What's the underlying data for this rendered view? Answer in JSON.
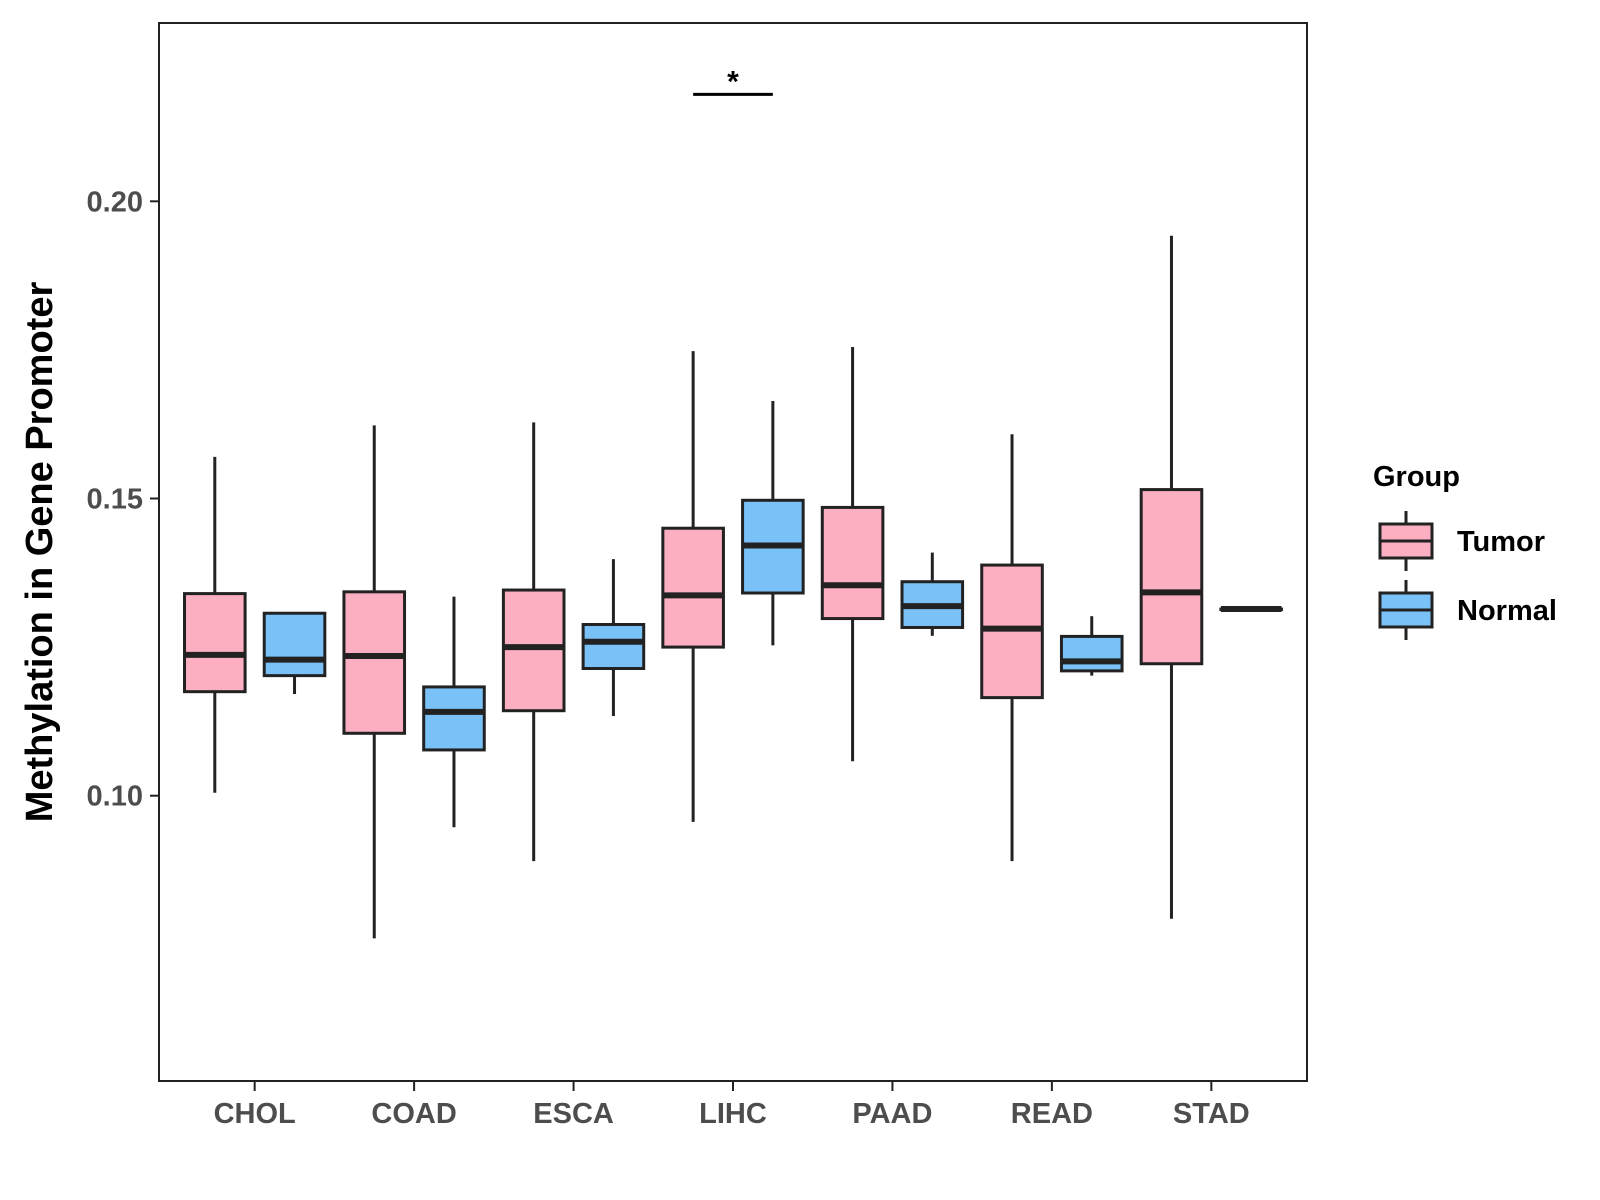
{
  "chart_data": {
    "type": "boxplot",
    "title": "",
    "xlabel": "",
    "ylabel": "Methylation in Gene Promoter",
    "ylim": [
      0.052,
      0.23
    ],
    "yticks": [
      0.1,
      0.15,
      0.2
    ],
    "ytick_labels": [
      "0.10",
      "0.15",
      "0.20"
    ],
    "categories": [
      "CHOL",
      "COAD",
      "ESCA",
      "LIHC",
      "PAAD",
      "READ",
      "STAD"
    ],
    "legend": {
      "title": "Group",
      "position": "right",
      "items": [
        {
          "name": "Tumor",
          "color": "#FBAFC1"
        },
        {
          "name": "Normal",
          "color": "#79C1F7"
        }
      ]
    },
    "series": [
      {
        "name": "Tumor",
        "color": "#FBAFC1",
        "boxes": [
          {
            "category": "CHOL",
            "min": 0.1005,
            "q1": 0.1175,
            "median": 0.1237,
            "q3": 0.134,
            "max": 0.157
          },
          {
            "category": "COAD",
            "min": 0.076,
            "q1": 0.1105,
            "median": 0.1235,
            "q3": 0.1343,
            "max": 0.1623
          },
          {
            "category": "ESCA",
            "min": 0.089,
            "q1": 0.1143,
            "median": 0.125,
            "q3": 0.1346,
            "max": 0.1628
          },
          {
            "category": "LIHC",
            "min": 0.0956,
            "q1": 0.125,
            "median": 0.1337,
            "q3": 0.145,
            "max": 0.1748
          },
          {
            "category": "PAAD",
            "min": 0.1058,
            "q1": 0.1298,
            "median": 0.1354,
            "q3": 0.1485,
            "max": 0.1755
          },
          {
            "category": "READ",
            "min": 0.089,
            "q1": 0.1165,
            "median": 0.1281,
            "q3": 0.1388,
            "max": 0.1608
          },
          {
            "category": "STAD",
            "min": 0.0793,
            "q1": 0.1222,
            "median": 0.1342,
            "q3": 0.1515,
            "max": 0.1942
          }
        ]
      },
      {
        "name": "Normal",
        "color": "#79C1F7",
        "boxes": [
          {
            "category": "CHOL",
            "min": 0.1171,
            "q1": 0.1202,
            "median": 0.1229,
            "q3": 0.1307,
            "max": 0.1307
          },
          {
            "category": "COAD",
            "min": 0.0947,
            "q1": 0.1077,
            "median": 0.1141,
            "q3": 0.1183,
            "max": 0.1335
          },
          {
            "category": "ESCA",
            "min": 0.1134,
            "q1": 0.1214,
            "median": 0.1259,
            "q3": 0.1288,
            "max": 0.1398
          },
          {
            "category": "LIHC",
            "min": 0.1253,
            "q1": 0.1341,
            "median": 0.1421,
            "q3": 0.1497,
            "max": 0.1664
          },
          {
            "category": "PAAD",
            "min": 0.1269,
            "q1": 0.1283,
            "median": 0.1319,
            "q3": 0.136,
            "max": 0.1409
          },
          {
            "category": "READ",
            "min": 0.1202,
            "q1": 0.121,
            "median": 0.1226,
            "q3": 0.1268,
            "max": 0.1302
          },
          {
            "category": "STAD",
            "min": 0.1314,
            "q1": 0.1314,
            "median": 0.1314,
            "q3": 0.1314,
            "max": 0.1314
          }
        ]
      }
    ],
    "annotations": [
      {
        "type": "significance",
        "category": "LIHC",
        "text": "*",
        "y": 0.218
      }
    ],
    "grid": false
  }
}
